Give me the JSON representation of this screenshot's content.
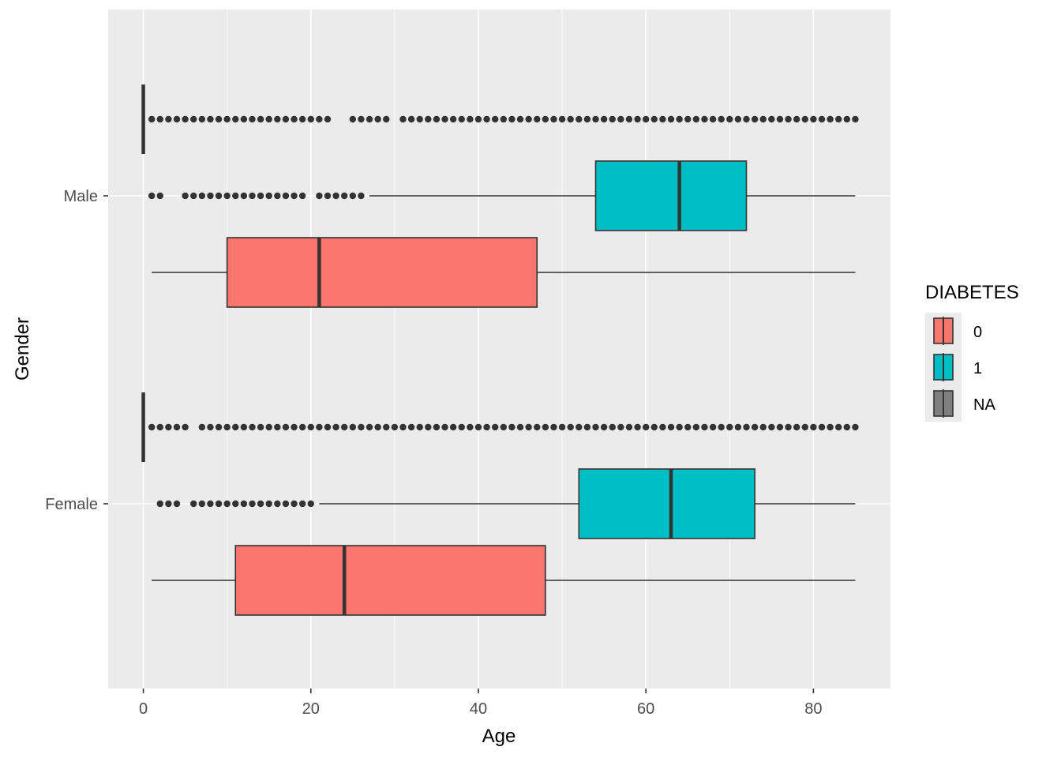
{
  "chart_data": {
    "type": "boxplot",
    "orientation": "horizontal",
    "xlabel": "Age",
    "ylabel": "Gender",
    "xlim": [
      -4.2,
      89.2
    ],
    "x_ticks": [
      "0",
      "20",
      "40",
      "60",
      "80"
    ],
    "x_tick_values": [
      0,
      20,
      40,
      60,
      80
    ],
    "categories": [
      "Male",
      "Female"
    ],
    "grid": true,
    "legend": {
      "title": "DIABETES",
      "position": "right",
      "entries": [
        "0",
        "1",
        "NA"
      ]
    },
    "colors": {
      "0": "#f8766d",
      "1": "#00bfc4",
      "NA": "#7f7f7f",
      "panel": "#ebebeb",
      "outline": "#333333"
    },
    "series": [
      {
        "name": "0",
        "category": "Male",
        "min": 1,
        "q1": 10,
        "median": 21,
        "q3": 47,
        "max": 85,
        "outliers": []
      },
      {
        "name": "1",
        "category": "Male",
        "min": 27,
        "q1": 54,
        "median": 64,
        "q3": 72,
        "max": 85,
        "outliers": [
          1,
          2,
          5,
          6,
          7,
          8,
          9,
          10,
          11,
          12,
          13,
          14,
          15,
          16,
          17,
          18,
          19,
          21,
          22,
          23,
          24,
          25,
          26
        ]
      },
      {
        "name": "NA",
        "category": "Male",
        "min": 0,
        "q1": 0,
        "median": 0,
        "q3": 0,
        "max": 0,
        "outliers": [
          1,
          2,
          3,
          4,
          5,
          6,
          7,
          8,
          9,
          10,
          11,
          12,
          13,
          14,
          15,
          16,
          17,
          18,
          19,
          20,
          21,
          22,
          25,
          26,
          27,
          28,
          29,
          31,
          32,
          33,
          34,
          35,
          36,
          37,
          38,
          39,
          40,
          41,
          42,
          43,
          44,
          45,
          46,
          47,
          48,
          49,
          50,
          51,
          52,
          53,
          54,
          55,
          56,
          57,
          58,
          59,
          60,
          61,
          62,
          63,
          64,
          65,
          66,
          67,
          68,
          69,
          70,
          71,
          72,
          73,
          74,
          75,
          76,
          77,
          78,
          79,
          80,
          81,
          82,
          83,
          84,
          85
        ]
      },
      {
        "name": "0",
        "category": "Female",
        "min": 1,
        "q1": 11,
        "median": 24,
        "q3": 48,
        "max": 85,
        "outliers": []
      },
      {
        "name": "1",
        "category": "Female",
        "min": 21,
        "q1": 52,
        "median": 63,
        "q3": 73,
        "max": 85,
        "outliers": [
          2,
          3,
          4,
          6,
          7,
          8,
          9,
          10,
          11,
          12,
          13,
          14,
          15,
          16,
          17,
          18,
          19,
          20
        ]
      },
      {
        "name": "NA",
        "category": "Female",
        "min": 0,
        "q1": 0,
        "median": 0,
        "q3": 0,
        "max": 0,
        "outliers": [
          1,
          2,
          3,
          4,
          5,
          7,
          8,
          9,
          10,
          11,
          12,
          13,
          14,
          15,
          16,
          17,
          18,
          19,
          20,
          21,
          22,
          23,
          24,
          25,
          26,
          27,
          28,
          29,
          30,
          31,
          32,
          33,
          34,
          35,
          36,
          37,
          38,
          39,
          40,
          41,
          42,
          43,
          44,
          45,
          46,
          47,
          48,
          49,
          50,
          51,
          52,
          53,
          54,
          55,
          56,
          57,
          58,
          59,
          60,
          61,
          62,
          63,
          64,
          65,
          66,
          67,
          68,
          69,
          70,
          71,
          72,
          73,
          74,
          75,
          76,
          77,
          78,
          79,
          80,
          81,
          82,
          83,
          84,
          85
        ]
      }
    ]
  }
}
